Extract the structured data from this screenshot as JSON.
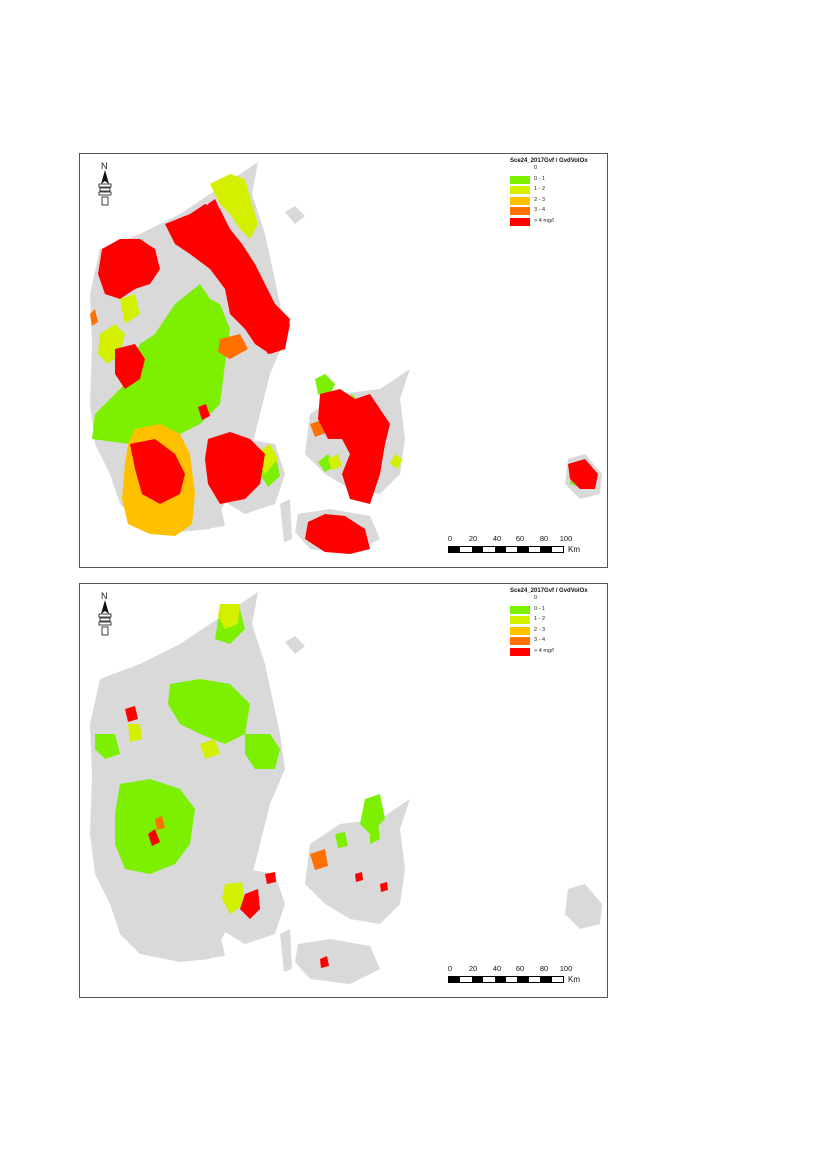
{
  "maps": [
    {
      "id": "top",
      "legend": {
        "title": "Sce24_2017Gvf / GvdVolOx",
        "items": [
          {
            "label": "0",
            "color": ""
          },
          {
            "label": "0 - 1",
            "color": "#7cf000"
          },
          {
            "label": "1 - 2",
            "color": "#d2f000"
          },
          {
            "label": "2 - 3",
            "color": "#ffc000"
          },
          {
            "label": "3 - 4",
            "color": "#ff7000"
          },
          {
            "label": "> 4 mg/l",
            "color": "#ff0000"
          }
        ]
      },
      "north_label": "N",
      "scale": {
        "ticks": [
          "0",
          "20",
          "40",
          "60",
          "80",
          "100"
        ],
        "unit": "Km"
      }
    },
    {
      "id": "bottom",
      "legend": {
        "title": "Sce24_2017Gvf / GvdVolOx",
        "items": [
          {
            "label": "0",
            "color": ""
          },
          {
            "label": "0 - 1",
            "color": "#7cf000"
          },
          {
            "label": "1 - 2",
            "color": "#d2f000"
          },
          {
            "label": "2 - 3",
            "color": "#ffc000"
          },
          {
            "label": "3 - 4",
            "color": "#ff7000"
          },
          {
            "label": "> 4 mg/l",
            "color": "#ff0000"
          }
        ]
      },
      "north_label": "N",
      "scale": {
        "ticks": [
          "0",
          "20",
          "40",
          "60",
          "80",
          "100"
        ],
        "unit": "Km"
      }
    }
  ],
  "colors": {
    "land": "#d9d9d9",
    "c01": "#7cf000",
    "c12": "#d2f000",
    "c23": "#ffc000",
    "c34": "#ff7000",
    "c4": "#ff0000"
  }
}
